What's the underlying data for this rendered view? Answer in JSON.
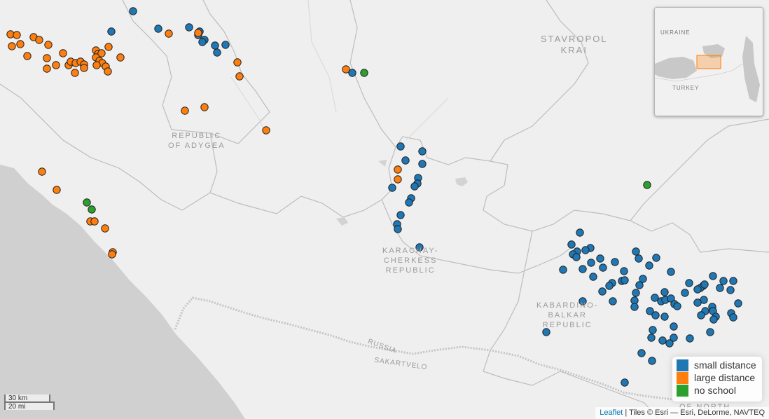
{
  "map": {
    "region_labels": [
      "STAVROPOL\nKRAI",
      "REPUBLIC\nOF ADYGEA",
      "KARACHAY-\nCHERKESS\nREPUBLIC",
      "KABARDINO-\nBALKAR\nREPUBLIC",
      "OF NORTH",
      "RUSSIA",
      "SAKARTVELO"
    ],
    "colors": {
      "background": "#efefef",
      "sea": "#d0d0d0",
      "borders": "#b8b8b8",
      "small_distance": "#1f77b4",
      "large_distance": "#ff7f0e",
      "no_school": "#2ca02c"
    }
  },
  "inset": {
    "labels": [
      "UKRAINE",
      "TURKEY"
    ]
  },
  "legend": {
    "items": [
      {
        "label": "small distance",
        "color": "#1f77b4"
      },
      {
        "label": "large distance",
        "color": "#ff7f0e"
      },
      {
        "label": "no school",
        "color": "#2ca02c"
      }
    ]
  },
  "scale": {
    "metric": "30 km",
    "imperial": "20 mi"
  },
  "attribution": {
    "link": "Leaflet",
    "text": " | Tiles © Esri — Esri, DeLorme, NAVTEQ"
  }
}
